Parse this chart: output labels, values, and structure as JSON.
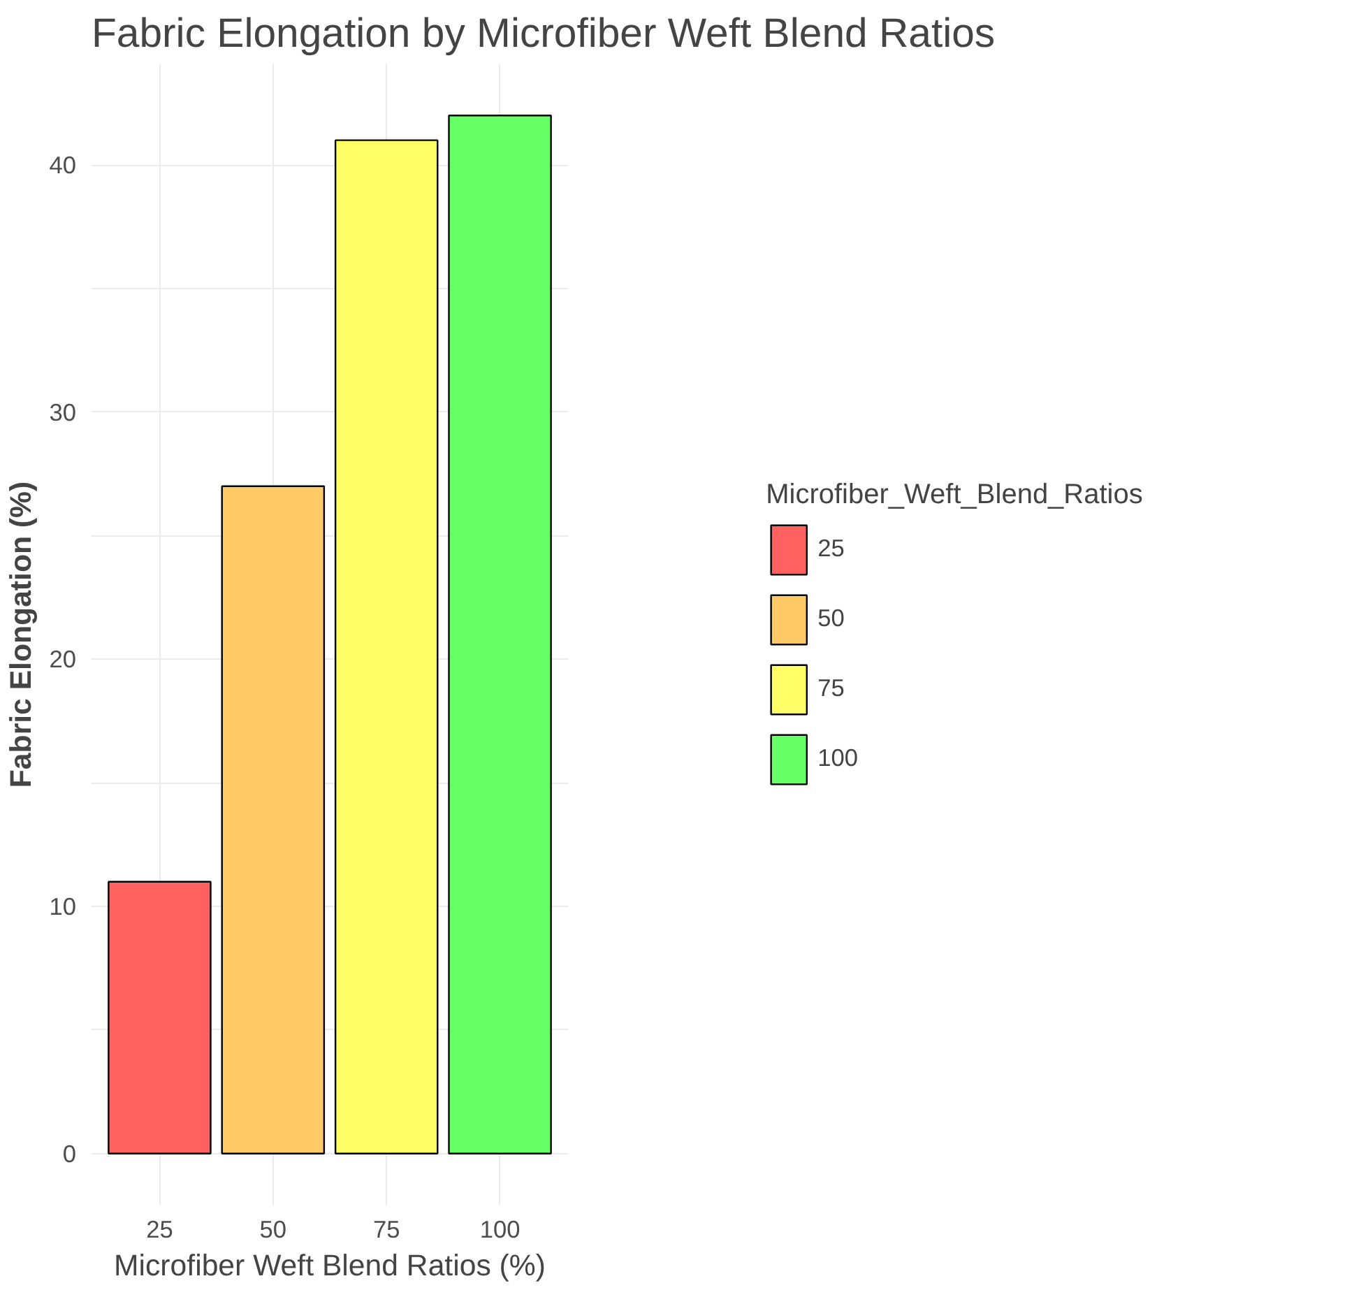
{
  "chart_data": {
    "type": "bar",
    "title": "Fabric Elongation by Microfiber Weft Blend Ratios",
    "xlabel": "Microfiber Weft Blend Ratios (%)",
    "ylabel": "Fabric Elongation (%)",
    "legend_title": "Microfiber_Weft_Blend_Ratios",
    "categories": [
      "25",
      "50",
      "75",
      "100"
    ],
    "series": [
      {
        "name": "25",
        "color": "#ff6161",
        "values": [
          11,
          null,
          null,
          null
        ]
      },
      {
        "name": "50",
        "color": "#ffc966",
        "values": [
          null,
          27,
          null,
          null
        ]
      },
      {
        "name": "75",
        "color": "#ffff66",
        "values": [
          null,
          null,
          41,
          null
        ]
      },
      {
        "name": "100",
        "color": "#66ff66",
        "values": [
          null,
          null,
          null,
          42
        ]
      }
    ],
    "ylim": [
      -2.1,
      44.1
    ],
    "yticks": [
      0,
      10,
      20,
      30,
      40
    ],
    "grid": true,
    "legend": "right"
  }
}
